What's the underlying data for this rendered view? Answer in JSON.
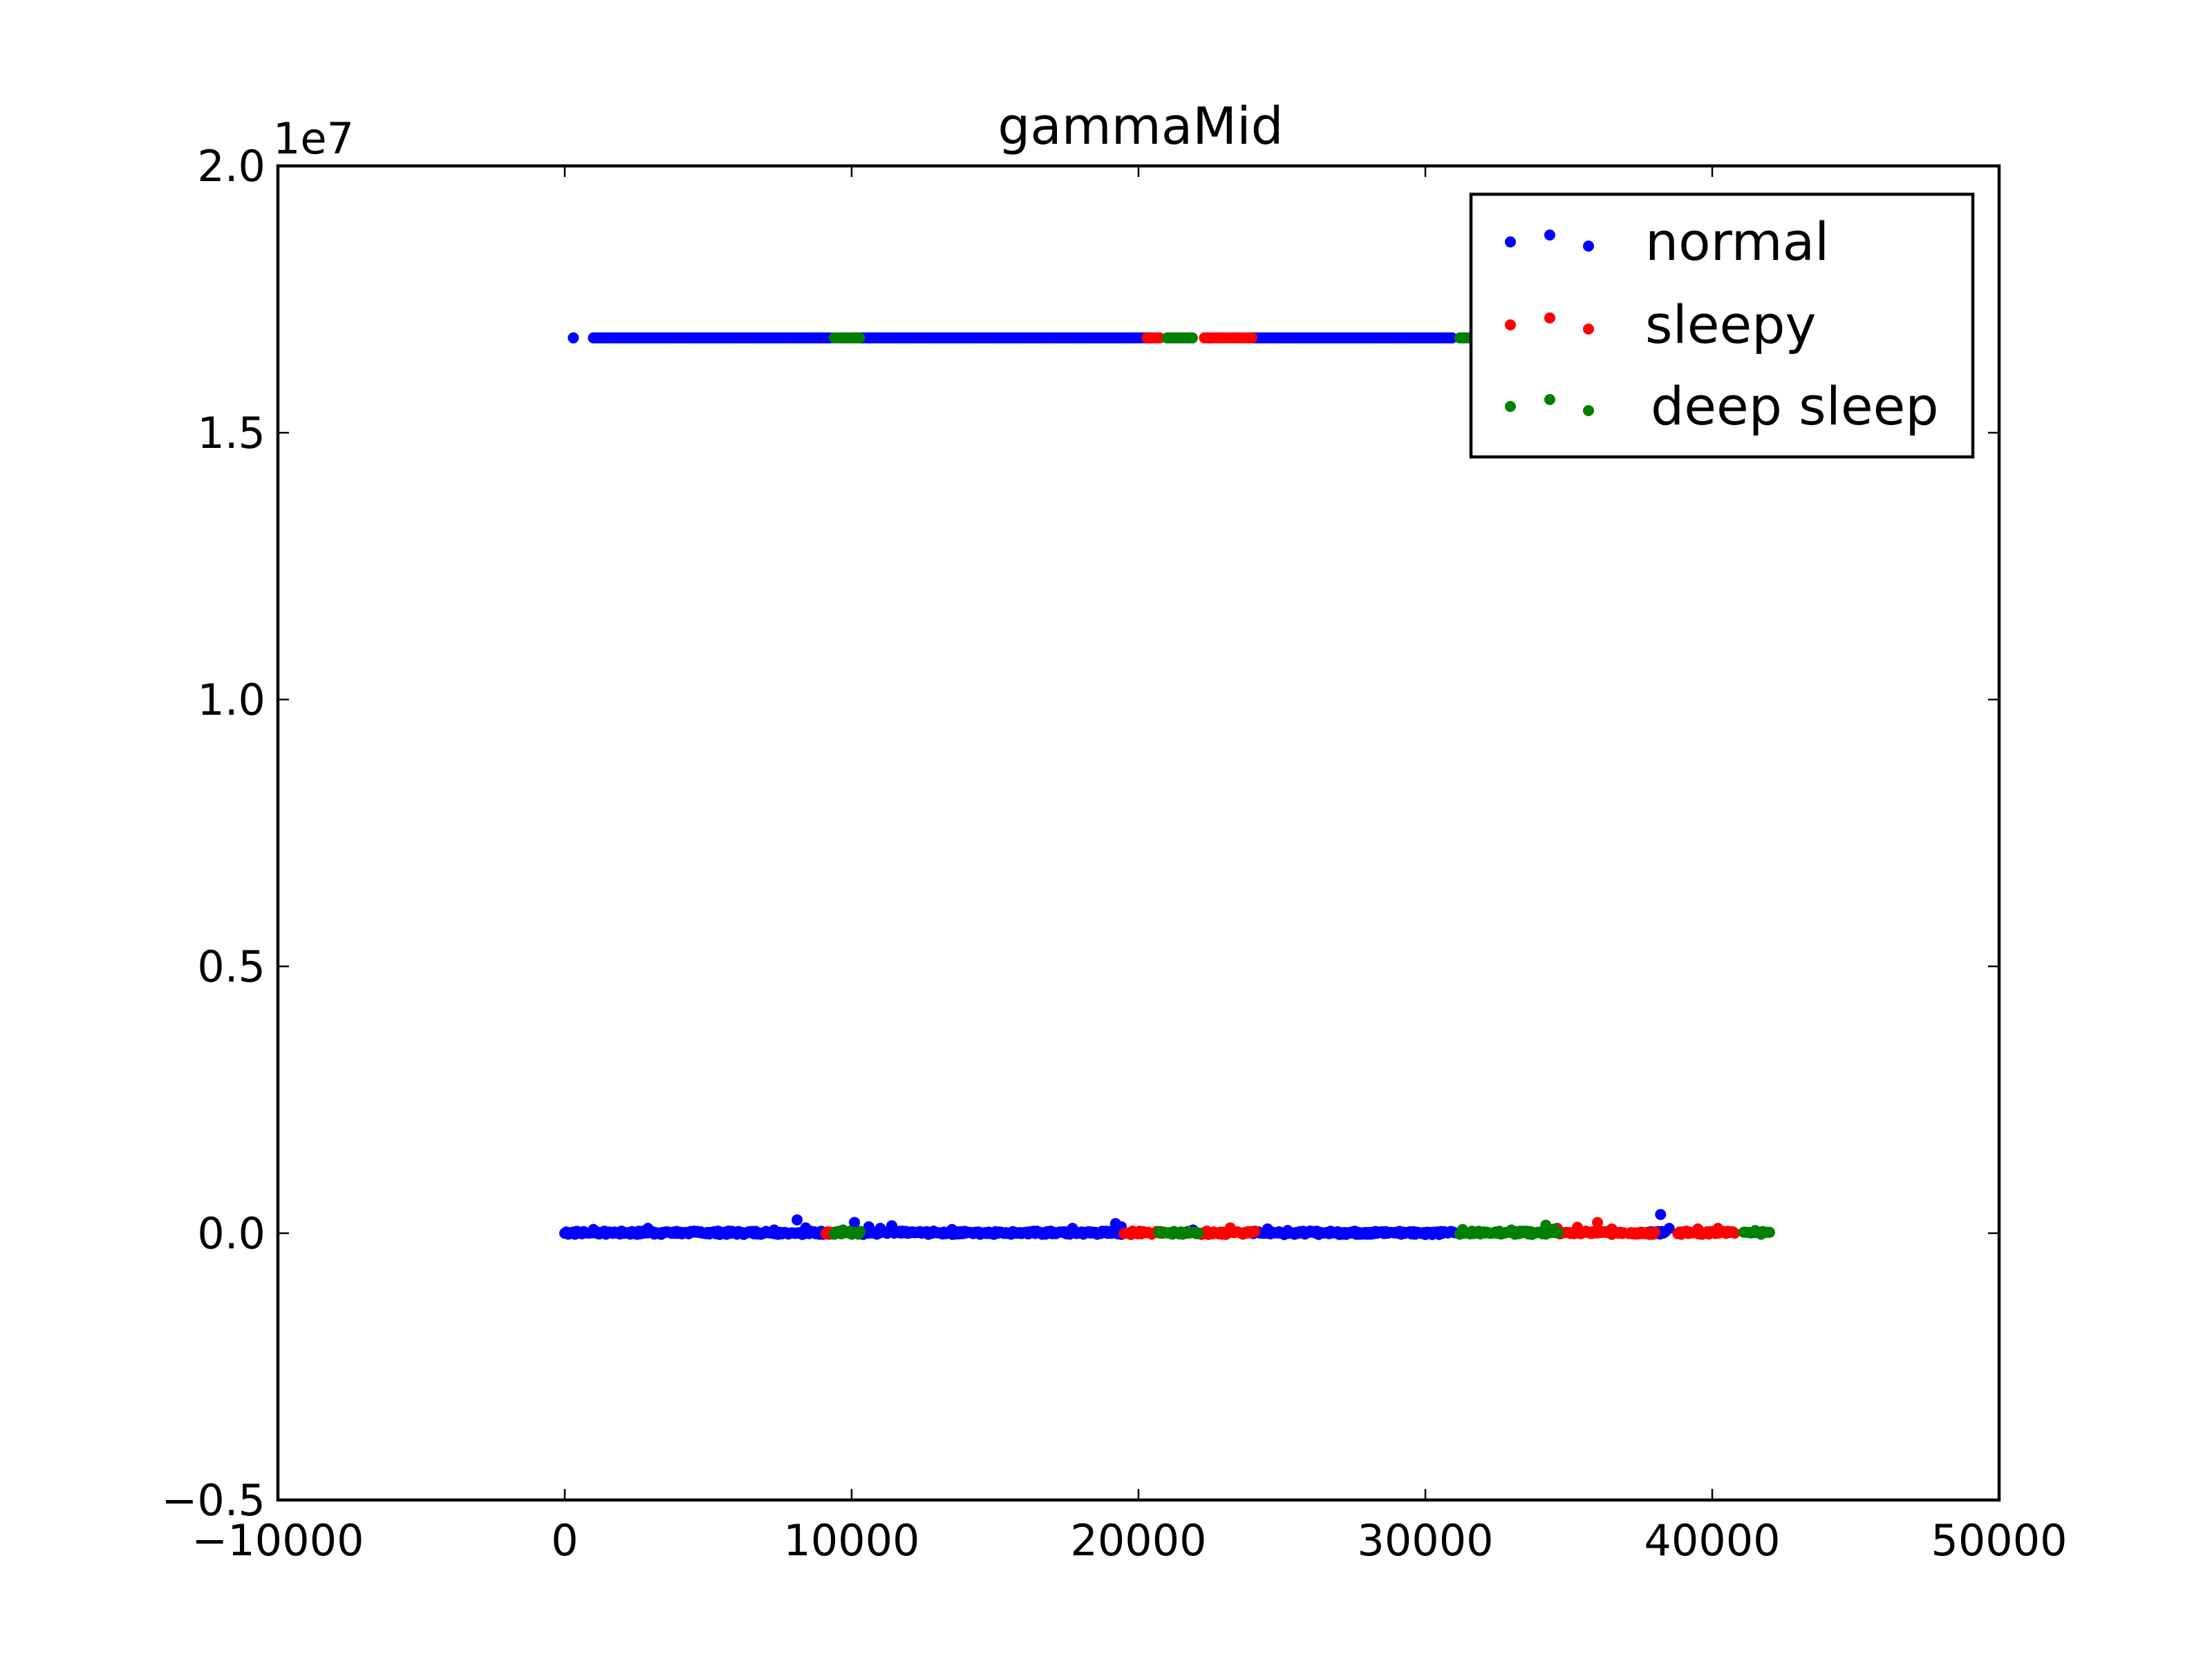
{
  "chart_data": {
    "type": "scatter",
    "title": "gammaMid",
    "xlabel": "",
    "ylabel": "",
    "y_offset_label": "1e7",
    "xlim": [
      -10000,
      50000
    ],
    "ylim": [
      -5000000,
      20000000
    ],
    "x_ticks": [
      -10000,
      0,
      10000,
      20000,
      30000,
      40000,
      50000
    ],
    "x_tick_labels": [
      "−10000",
      "0",
      "10000",
      "20000",
      "30000",
      "40000",
      "50000"
    ],
    "y_ticks": [
      -5000000,
      0,
      5000000,
      10000000,
      15000000,
      20000000
    ],
    "y_tick_labels": [
      "−0.5",
      "0.0",
      "0.5",
      "1.0",
      "1.5",
      "2.0"
    ],
    "grid": false,
    "legend_position": "top-right",
    "upper_band_value": 16777215,
    "series": [
      {
        "name": "normal",
        "color": "#0000ff",
        "lower_ranges": [
          [
            0,
            9200
          ],
          [
            10400,
            19400
          ],
          [
            24000,
            31000
          ],
          [
            37700,
            38300
          ]
        ],
        "upper_ranges": [
          [
            1000,
            9300
          ],
          [
            10300,
            20500
          ],
          [
            24000,
            31000
          ]
        ],
        "upper_points": [
          [
            300,
            16777215
          ],
          [
            22500,
            16777215
          ]
        ],
        "outliers": [
          [
            1000,
            70000
          ],
          [
            2900,
            90000
          ],
          [
            7300,
            60000
          ],
          [
            8100,
            250000
          ],
          [
            8400,
            100000
          ],
          [
            10100,
            200000
          ],
          [
            10600,
            120000
          ],
          [
            11000,
            90000
          ],
          [
            11400,
            140000
          ],
          [
            13500,
            70000
          ],
          [
            17700,
            90000
          ],
          [
            19200,
            180000
          ],
          [
            19400,
            120000
          ],
          [
            21900,
            60000
          ],
          [
            24500,
            80000
          ],
          [
            25200,
            50000
          ],
          [
            38200,
            350000
          ],
          [
            38500,
            90000
          ]
        ]
      },
      {
        "name": "sleepy",
        "color": "#ff0000",
        "lower_ranges": [
          [
            9100,
            9300
          ],
          [
            19500,
            20700
          ],
          [
            22200,
            24000
          ],
          [
            34700,
            36900
          ],
          [
            37100,
            38000
          ],
          [
            38800,
            40800
          ]
        ],
        "upper_ranges": [
          [
            20300,
            20800
          ],
          [
            22300,
            24000
          ]
        ],
        "upper_points": [],
        "outliers": [
          [
            23200,
            100000
          ],
          [
            34600,
            90000
          ],
          [
            35300,
            110000
          ],
          [
            36000,
            200000
          ],
          [
            36500,
            80000
          ],
          [
            39500,
            80000
          ],
          [
            40200,
            90000
          ]
        ]
      },
      {
        "name": "deep sleep",
        "color": "#008000",
        "lower_ranges": [
          [
            9400,
            10300
          ],
          [
            20700,
            22100
          ],
          [
            31200,
            34600
          ],
          [
            41100,
            42000
          ]
        ],
        "upper_ranges": [
          [
            9400,
            10300
          ],
          [
            21000,
            21900
          ],
          [
            31200,
            31700
          ]
        ],
        "upper_points": [],
        "outliers": [
          [
            9700,
            60000
          ],
          [
            31300,
            70000
          ],
          [
            33000,
            60000
          ],
          [
            34200,
            150000
          ],
          [
            34500,
            80000
          ],
          [
            41500,
            50000
          ]
        ]
      }
    ]
  }
}
